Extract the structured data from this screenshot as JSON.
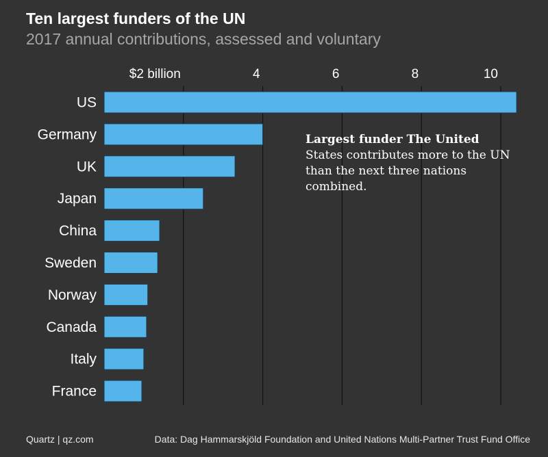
{
  "colors": {
    "background": "#333333",
    "bar": "#55b5ea",
    "bar_stroke": "#1e3a4c",
    "grid": "#111111",
    "subtitle": "#a6a6a6"
  },
  "annotation": {
    "bold": "Largest funder The United",
    "text": "States contributes more to the UN than the next three nations combined."
  },
  "footer": {
    "left": "Quartz | qz.com",
    "right": "Data: Dag Hammarskjöld Foundation and United Nations Multi-Partner Trust Fund Office"
  },
  "chart_data": {
    "type": "bar",
    "orientation": "horizontal",
    "title": "Ten largest funders of the UN",
    "subtitle": "2017 annual contributions, assessed and voluntary",
    "xlabel": "",
    "ylabel": "",
    "xlim": [
      0,
      10.5
    ],
    "ticks": [
      {
        "value": 2,
        "label": "$2 billion"
      },
      {
        "value": 4,
        "label": "4"
      },
      {
        "value": 6,
        "label": "6"
      },
      {
        "value": 8,
        "label": "8"
      },
      {
        "value": 10,
        "label": "10"
      }
    ],
    "grid": true,
    "categories": [
      "US",
      "Germany",
      "UK",
      "Japan",
      "China",
      "Sweden",
      "Norway",
      "Canada",
      "Italy",
      "France"
    ],
    "values": [
      10.4,
      4.0,
      3.3,
      2.5,
      1.4,
      1.35,
      1.1,
      1.07,
      1.0,
      0.95
    ],
    "units": "billion USD"
  }
}
